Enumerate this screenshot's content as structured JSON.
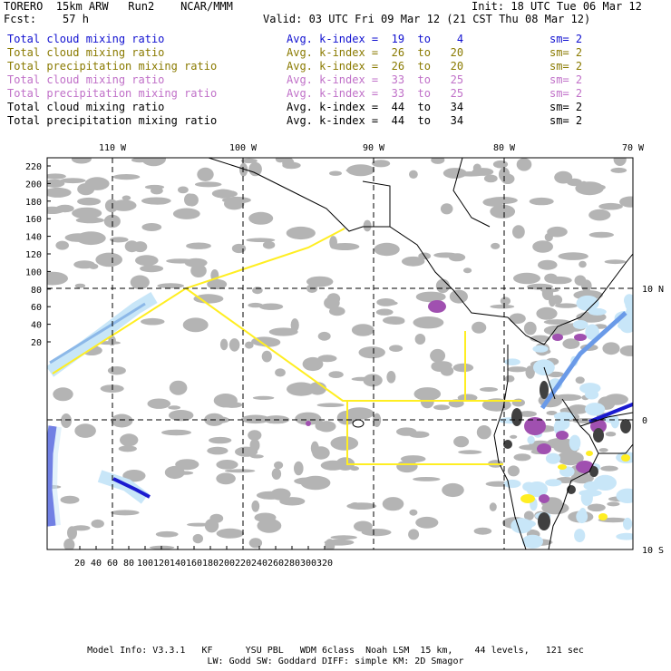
{
  "header": {
    "model": "TORERO  15km ARW   Run2    NCAR/MMM",
    "init": "Init: 18 UTC Tue 06 Mar 12",
    "fcst": "Fcst:    57 h",
    "valid": "Valid: 03 UTC Fri 09 Mar 12 (21 CST Thu 08 Mar 12)"
  },
  "fields": [
    {
      "name": "Total cloud mixing ratio",
      "kindex": "Avg. k-index =  19  to    4",
      "sm": "sm= 2",
      "color": "#1010d0"
    },
    {
      "name": "Total cloud mixing ratio",
      "kindex": "Avg. k-index =  26  to   20",
      "sm": "sm= 2",
      "color": "#8a7a00"
    },
    {
      "name": "Total precipitation mixing ratio",
      "kindex": "Avg. k-index =  26  to   20",
      "sm": "sm= 2",
      "color": "#8a7a00"
    },
    {
      "name": "Total cloud mixing ratio",
      "kindex": "Avg. k-index =  33  to   25",
      "sm": "sm= 2",
      "color": "#c070c8"
    },
    {
      "name": "Total precipitation mixing ratio",
      "kindex": "Avg. k-index =  33  to   25",
      "sm": "sm= 2",
      "color": "#c070c8"
    },
    {
      "name": "Total cloud mixing ratio",
      "kindex": "Avg. k-index =  44  to   34",
      "sm": "sm= 2",
      "color": "#000000"
    },
    {
      "name": "Total precipitation mixing ratio",
      "kindex": "Avg. k-index =  44  to   34",
      "sm": "sm= 2",
      "color": "#000000"
    }
  ],
  "axes": {
    "lon_labels": [
      "110 W",
      "100 W",
      "90 W",
      "80 W",
      "70 W"
    ],
    "lat_labels": [
      "10 N",
      "0",
      "10 S"
    ],
    "x_ticks": [
      "20",
      "40",
      "60",
      "80",
      "100",
      "120",
      "140",
      "160",
      "180",
      "200",
      "220",
      "240",
      "260",
      "280",
      "300",
      "320"
    ],
    "y_ticks": [
      "220",
      "200",
      "180",
      "160",
      "140",
      "120",
      "100",
      "80",
      "60",
      "40",
      "20"
    ]
  },
  "footer": {
    "line1": "Model Info: V3.3.1   KF      YSU PBL   WDM 6class  Noah LSM  15 km,    44 levels,   121 sec",
    "line2": "LW: Godd SW: Goddard DIFF: simple KM: 2D Smagor"
  },
  "colors": {
    "cloud_gray": "#b4b4b4",
    "light_blue": "#c8e6f8",
    "blue": "#1a1ad0",
    "purple": "#a050b0",
    "yellow": "#ffee22",
    "dark": "#404040"
  }
}
